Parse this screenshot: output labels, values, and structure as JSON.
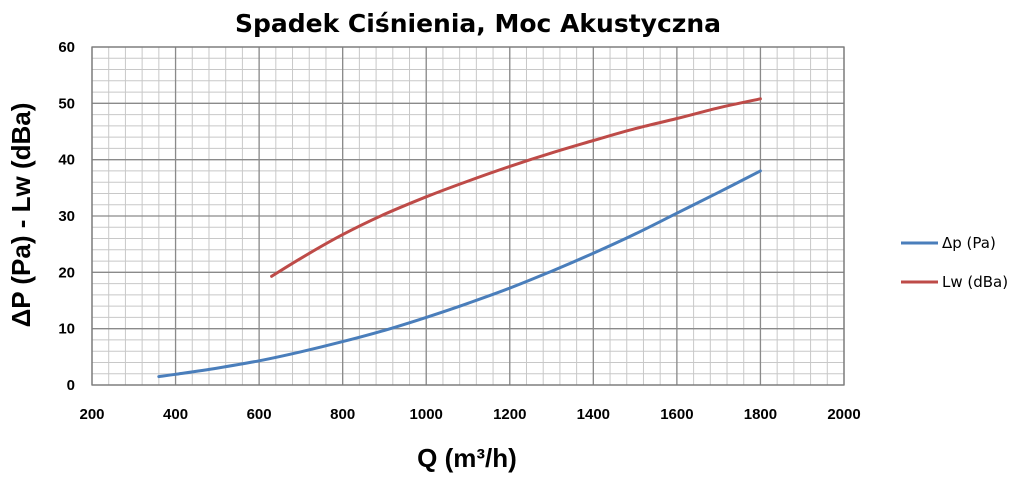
{
  "chart_data": {
    "type": "line",
    "title": "Spadek Ciśnienia, Moc Akustyczna",
    "xlabel": "Q (m³/h)",
    "ylabel": "ΔP (Pa) - Lw (dBa)",
    "xlim": [
      200,
      2000
    ],
    "ylim": [
      0,
      60
    ],
    "xticks": [
      200,
      400,
      600,
      800,
      1000,
      1200,
      1400,
      1600,
      1800,
      2000
    ],
    "yticks": [
      0,
      10,
      20,
      30,
      40,
      50,
      60
    ],
    "xtick_labels": [
      "200",
      "400",
      "600",
      "800",
      "1000",
      "1200",
      "1400",
      "1600",
      "1800",
      "2000"
    ],
    "ytick_labels": [
      "0",
      "10",
      "20",
      "30",
      "40",
      "50",
      "60"
    ],
    "grid": true,
    "legend_position": "right",
    "series": [
      {
        "name": "Δp (Pa)",
        "color": "#4a7ebb",
        "x": [
          360,
          400,
          500,
          600,
          700,
          800,
          900,
          1000,
          1100,
          1200,
          1300,
          1400,
          1500,
          1600,
          1700,
          1800
        ],
        "y": [
          1.5,
          1.9,
          3.0,
          4.3,
          5.9,
          7.7,
          9.7,
          12.0,
          14.5,
          17.2,
          20.2,
          23.4,
          26.8,
          30.5,
          34.2,
          38.0
        ]
      },
      {
        "name": "Lw (dBa)",
        "color": "#be4b48",
        "x": [
          630,
          700,
          800,
          900,
          1000,
          1100,
          1200,
          1300,
          1400,
          1500,
          1600,
          1700,
          1800
        ],
        "y": [
          19.3,
          22.5,
          26.7,
          30.3,
          33.4,
          36.2,
          38.8,
          41.2,
          43.4,
          45.5,
          47.3,
          49.2,
          50.8
        ]
      }
    ]
  }
}
